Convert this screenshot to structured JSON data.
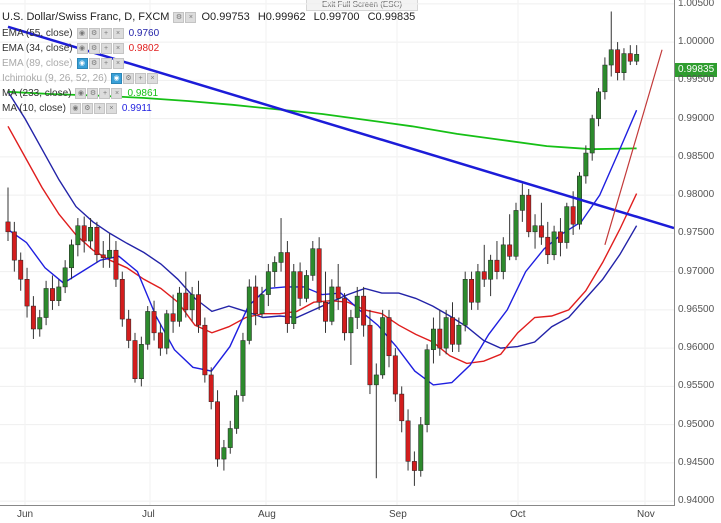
{
  "toolbar": {
    "exit_fullscreen": "Exit Full Screen (ESC)"
  },
  "legend": {
    "main": {
      "symbol": "U.S. Dollar/Swiss Franc, D, FXCM",
      "o": "O0.99753",
      "h": "H0.99962",
      "l": "L0.99700",
      "c": "C0.99835"
    },
    "indicators": [
      {
        "name": "EMA (55, close)",
        "value": "0.9760",
        "color": "#2323a8",
        "visible": true
      },
      {
        "name": "EMA (34, close)",
        "value": "0.9802",
        "color": "#e01e1e",
        "visible": true
      },
      {
        "name": "EMA (89, close)",
        "value": "",
        "color": "#a9a9a9",
        "visible": false
      },
      {
        "name": "Ichimoku (9, 26, 52, 26)",
        "value": "",
        "color": "#a9a9a9",
        "visible": false
      },
      {
        "name": "MA (233, close)",
        "value": "0.9861",
        "color": "#16c016",
        "visible": true
      },
      {
        "name": "MA (10, close)",
        "value": "0.9911",
        "color": "#1f1fe0",
        "visible": true
      }
    ]
  },
  "last_price": "0.99835",
  "chart_data": {
    "type": "candlestick",
    "symbol": "U.S. Dollar/Swiss Franc, D, FXCM",
    "ylim": [
      0.9395,
      1.0055
    ],
    "y_ticks": [
      "1.00500",
      "1.00000",
      "0.99500",
      "0.99000",
      "0.98500",
      "0.98000",
      "0.97500",
      "0.97000",
      "0.96500",
      "0.96000",
      "0.95500",
      "0.95000",
      "0.94500",
      "0.94000"
    ],
    "x_ticks": [
      "Jun",
      "Jul",
      "Aug",
      "Sep",
      "Oct",
      "Nov"
    ],
    "colors": {
      "up": "#2d8a2d",
      "down": "#d31d1d"
    },
    "candles": [
      [
        0.9765,
        0.981,
        0.974,
        0.9752
      ],
      [
        0.9752,
        0.9765,
        0.97,
        0.9715
      ],
      [
        0.9715,
        0.9725,
        0.9675,
        0.969
      ],
      [
        0.969,
        0.9705,
        0.964,
        0.9655
      ],
      [
        0.9655,
        0.9668,
        0.9612,
        0.9625
      ],
      [
        0.9625,
        0.965,
        0.9615,
        0.964
      ],
      [
        0.964,
        0.9688,
        0.963,
        0.9678
      ],
      [
        0.9678,
        0.9695,
        0.965,
        0.9662
      ],
      [
        0.9662,
        0.969,
        0.9655,
        0.968
      ],
      [
        0.968,
        0.9715,
        0.9672,
        0.9705
      ],
      [
        0.9705,
        0.9742,
        0.969,
        0.9735
      ],
      [
        0.9735,
        0.977,
        0.972,
        0.976
      ],
      [
        0.976,
        0.9772,
        0.9725,
        0.974
      ],
      [
        0.974,
        0.977,
        0.973,
        0.9758
      ],
      [
        0.9758,
        0.9765,
        0.9712,
        0.9722
      ],
      [
        0.9722,
        0.974,
        0.9705,
        0.9718
      ],
      [
        0.9718,
        0.975,
        0.9705,
        0.9728
      ],
      [
        0.9728,
        0.974,
        0.968,
        0.969
      ],
      [
        0.969,
        0.97,
        0.9628,
        0.9638
      ],
      [
        0.9638,
        0.965,
        0.96,
        0.961
      ],
      [
        0.961,
        0.962,
        0.9555,
        0.956
      ],
      [
        0.956,
        0.9615,
        0.955,
        0.9605
      ],
      [
        0.9605,
        0.9655,
        0.9598,
        0.9648
      ],
      [
        0.9648,
        0.9662,
        0.961,
        0.962
      ],
      [
        0.962,
        0.9632,
        0.959,
        0.96
      ],
      [
        0.96,
        0.965,
        0.9592,
        0.9645
      ],
      [
        0.9645,
        0.967,
        0.962,
        0.9635
      ],
      [
        0.9635,
        0.968,
        0.9628,
        0.9672
      ],
      [
        0.9672,
        0.97,
        0.964,
        0.965
      ],
      [
        0.965,
        0.968,
        0.9635,
        0.967
      ],
      [
        0.967,
        0.9688,
        0.962,
        0.963
      ],
      [
        0.963,
        0.964,
        0.9555,
        0.9565
      ],
      [
        0.9565,
        0.9575,
        0.952,
        0.953
      ],
      [
        0.953,
        0.9545,
        0.9445,
        0.9455
      ],
      [
        0.9455,
        0.948,
        0.944,
        0.947
      ],
      [
        0.947,
        0.9505,
        0.9462,
        0.9495
      ],
      [
        0.9495,
        0.9545,
        0.9488,
        0.9538
      ],
      [
        0.9538,
        0.962,
        0.953,
        0.961
      ],
      [
        0.961,
        0.969,
        0.9605,
        0.968
      ],
      [
        0.968,
        0.9695,
        0.963,
        0.9645
      ],
      [
        0.9645,
        0.968,
        0.964,
        0.967
      ],
      [
        0.967,
        0.971,
        0.9655,
        0.97
      ],
      [
        0.97,
        0.972,
        0.968,
        0.9712
      ],
      [
        0.9712,
        0.977,
        0.97,
        0.9725
      ],
      [
        0.9725,
        0.974,
        0.962,
        0.9632
      ],
      [
        0.9632,
        0.971,
        0.9625,
        0.97
      ],
      [
        0.97,
        0.9712,
        0.9655,
        0.9665
      ],
      [
        0.9665,
        0.9702,
        0.966,
        0.9695
      ],
      [
        0.9695,
        0.974,
        0.9688,
        0.973
      ],
      [
        0.973,
        0.9745,
        0.965,
        0.966
      ],
      [
        0.966,
        0.97,
        0.962,
        0.9635
      ],
      [
        0.9635,
        0.969,
        0.963,
        0.968
      ],
      [
        0.968,
        0.971,
        0.965,
        0.9665
      ],
      [
        0.9665,
        0.9672,
        0.961,
        0.962
      ],
      [
        0.962,
        0.965,
        0.9578,
        0.964
      ],
      [
        0.964,
        0.968,
        0.9625,
        0.9668
      ],
      [
        0.9668,
        0.968,
        0.9615,
        0.963
      ],
      [
        0.963,
        0.965,
        0.954,
        0.9552
      ],
      [
        0.9552,
        0.958,
        0.943,
        0.9565
      ],
      [
        0.9565,
        0.965,
        0.956,
        0.964
      ],
      [
        0.964,
        0.965,
        0.9575,
        0.959
      ],
      [
        0.959,
        0.96,
        0.953,
        0.954
      ],
      [
        0.954,
        0.955,
        0.949,
        0.9505
      ],
      [
        0.9505,
        0.952,
        0.944,
        0.9452
      ],
      [
        0.9452,
        0.9465,
        0.942,
        0.944
      ],
      [
        0.944,
        0.951,
        0.9432,
        0.95
      ],
      [
        0.95,
        0.9605,
        0.949,
        0.9598
      ],
      [
        0.9598,
        0.964,
        0.958,
        0.9625
      ],
      [
        0.9625,
        0.965,
        0.959,
        0.96
      ],
      [
        0.96,
        0.965,
        0.9592,
        0.964
      ],
      [
        0.964,
        0.966,
        0.9595,
        0.9605
      ],
      [
        0.9605,
        0.964,
        0.9595,
        0.963
      ],
      [
        0.963,
        0.97,
        0.9622,
        0.969
      ],
      [
        0.969,
        0.97,
        0.965,
        0.966
      ],
      [
        0.966,
        0.971,
        0.965,
        0.97
      ],
      [
        0.97,
        0.9735,
        0.968,
        0.969
      ],
      [
        0.969,
        0.9722,
        0.9668,
        0.9715
      ],
      [
        0.9715,
        0.974,
        0.969,
        0.97
      ],
      [
        0.97,
        0.9745,
        0.969,
        0.9735
      ],
      [
        0.9735,
        0.9775,
        0.9715,
        0.972
      ],
      [
        0.972,
        0.979,
        0.9715,
        0.978
      ],
      [
        0.978,
        0.9815,
        0.9765,
        0.98
      ],
      [
        0.98,
        0.9808,
        0.9745,
        0.9752
      ],
      [
        0.9752,
        0.9775,
        0.973,
        0.976
      ],
      [
        0.976,
        0.979,
        0.9735,
        0.9745
      ],
      [
        0.9745,
        0.9765,
        0.971,
        0.9722
      ],
      [
        0.9722,
        0.976,
        0.9715,
        0.9752
      ],
      [
        0.9752,
        0.977,
        0.972,
        0.9738
      ],
      [
        0.9738,
        0.979,
        0.973,
        0.9785
      ],
      [
        0.9785,
        0.9805,
        0.9748,
        0.9762
      ],
      [
        0.9762,
        0.983,
        0.9755,
        0.9825
      ],
      [
        0.9825,
        0.9865,
        0.9815,
        0.9855
      ],
      [
        0.9855,
        0.9905,
        0.9845,
        0.99
      ],
      [
        0.99,
        0.994,
        0.989,
        0.9935
      ],
      [
        0.9935,
        0.998,
        0.9925,
        0.997
      ],
      [
        0.997,
        1.004,
        0.9955,
        0.999
      ],
      [
        0.999,
        1.0,
        0.995,
        0.996
      ],
      [
        0.996,
        0.9992,
        0.995,
        0.9985
      ],
      [
        0.9985,
        0.9996,
        0.997,
        0.9975
      ],
      [
        0.9975,
        0.9996,
        0.997,
        0.9984
      ]
    ],
    "series": [
      {
        "name": "EMA (55, close)",
        "color": "#2323a8",
        "values": [
          0.9935,
          0.99,
          0.986,
          0.982,
          0.9785,
          0.9765,
          0.975,
          0.9737,
          0.9725,
          0.971,
          0.969,
          0.9665,
          0.9648,
          0.9655,
          0.9648,
          0.964,
          0.9642,
          0.964,
          0.965,
          0.966,
          0.967,
          0.9678,
          0.9672,
          0.9672,
          0.9665,
          0.9655,
          0.9642,
          0.9628,
          0.961,
          0.96,
          0.9602,
          0.9608,
          0.9628,
          0.964,
          0.9665,
          0.969,
          0.9722,
          0.976
        ]
      },
      {
        "name": "EMA (34, close)",
        "color": "#e01e1e",
        "values": [
          0.989,
          0.985,
          0.981,
          0.9775,
          0.9748,
          0.9728,
          0.9715,
          0.9705,
          0.969,
          0.9678,
          0.966,
          0.963,
          0.962,
          0.9628,
          0.964,
          0.9645,
          0.9645,
          0.9648,
          0.966,
          0.9662,
          0.966,
          0.965,
          0.9645,
          0.963,
          0.9618,
          0.9608,
          0.959,
          0.958,
          0.9583,
          0.9592,
          0.962,
          0.964,
          0.9642,
          0.965,
          0.9675,
          0.9712,
          0.9755,
          0.9802
        ]
      },
      {
        "name": "MA (233, close)",
        "color": "#16c016",
        "values": [
          0.9935,
          0.9932,
          0.993,
          0.9927,
          0.9923,
          0.9918,
          0.9912,
          0.9906,
          0.9898,
          0.989,
          0.988,
          0.9872,
          0.9864,
          0.986,
          0.9861
        ]
      },
      {
        "name": "MA (10, close)",
        "color": "#1f1fe0",
        "values": [
          0.9755,
          0.9738,
          0.9705,
          0.9685,
          0.97,
          0.9715,
          0.972,
          0.97,
          0.9642,
          0.9598,
          0.9575,
          0.957,
          0.9602,
          0.9655,
          0.9678,
          0.968,
          0.968,
          0.967,
          0.9672,
          0.965,
          0.963,
          0.9602,
          0.957,
          0.9552,
          0.9555,
          0.9578,
          0.9618,
          0.965,
          0.97,
          0.973,
          0.975,
          0.9765,
          0.98,
          0.9855,
          0.9911
        ]
      }
    ],
    "trendlines": [
      {
        "color": "#1c1cd8",
        "from": [
          0,
          1.002
        ],
        "to": [
          106,
          0.9757
        ]
      },
      {
        "color": "#c33a3a",
        "from": [
          94,
          0.9735
        ],
        "to": [
          103,
          0.999
        ]
      }
    ]
  }
}
